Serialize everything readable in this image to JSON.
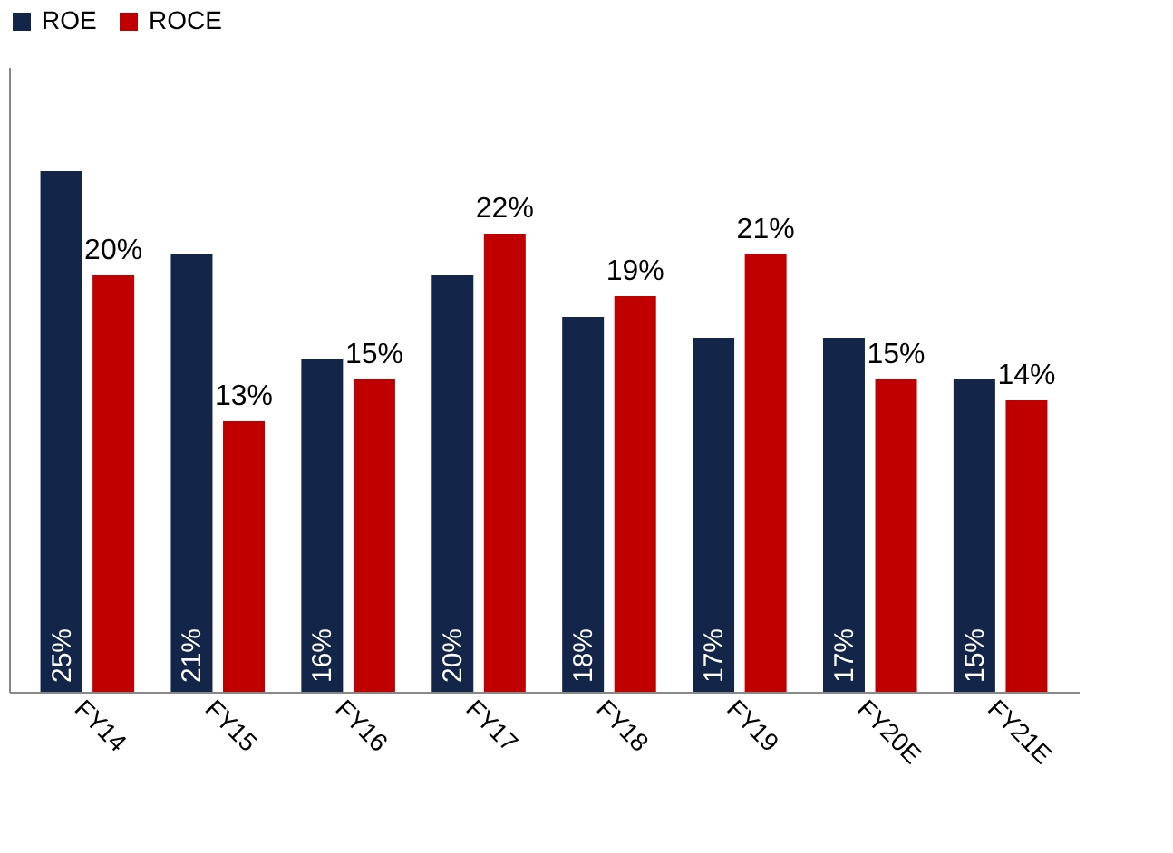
{
  "chart_data": {
    "type": "bar",
    "categories": [
      "FY14",
      "FY15",
      "FY16",
      "FY17",
      "FY18",
      "FY19",
      "FY20E",
      "FY21E"
    ],
    "series": [
      {
        "name": "ROE",
        "color": "#13264a",
        "values": [
          25,
          21,
          16,
          20,
          18,
          17,
          17,
          15
        ],
        "value_labels": [
          "25%",
          "21%",
          "16%",
          "20%",
          "18%",
          "17%",
          "17%",
          "15%"
        ]
      },
      {
        "name": "ROCE",
        "color": "#c00000",
        "values": [
          20,
          13,
          15,
          22,
          19,
          21,
          15,
          14
        ],
        "value_labels": [
          "20%",
          "13%",
          "15%",
          "22%",
          "19%",
          "21%",
          "15%",
          "14%"
        ]
      }
    ],
    "tick_labels": "x",
    "legend": "top",
    "grid": false
  }
}
